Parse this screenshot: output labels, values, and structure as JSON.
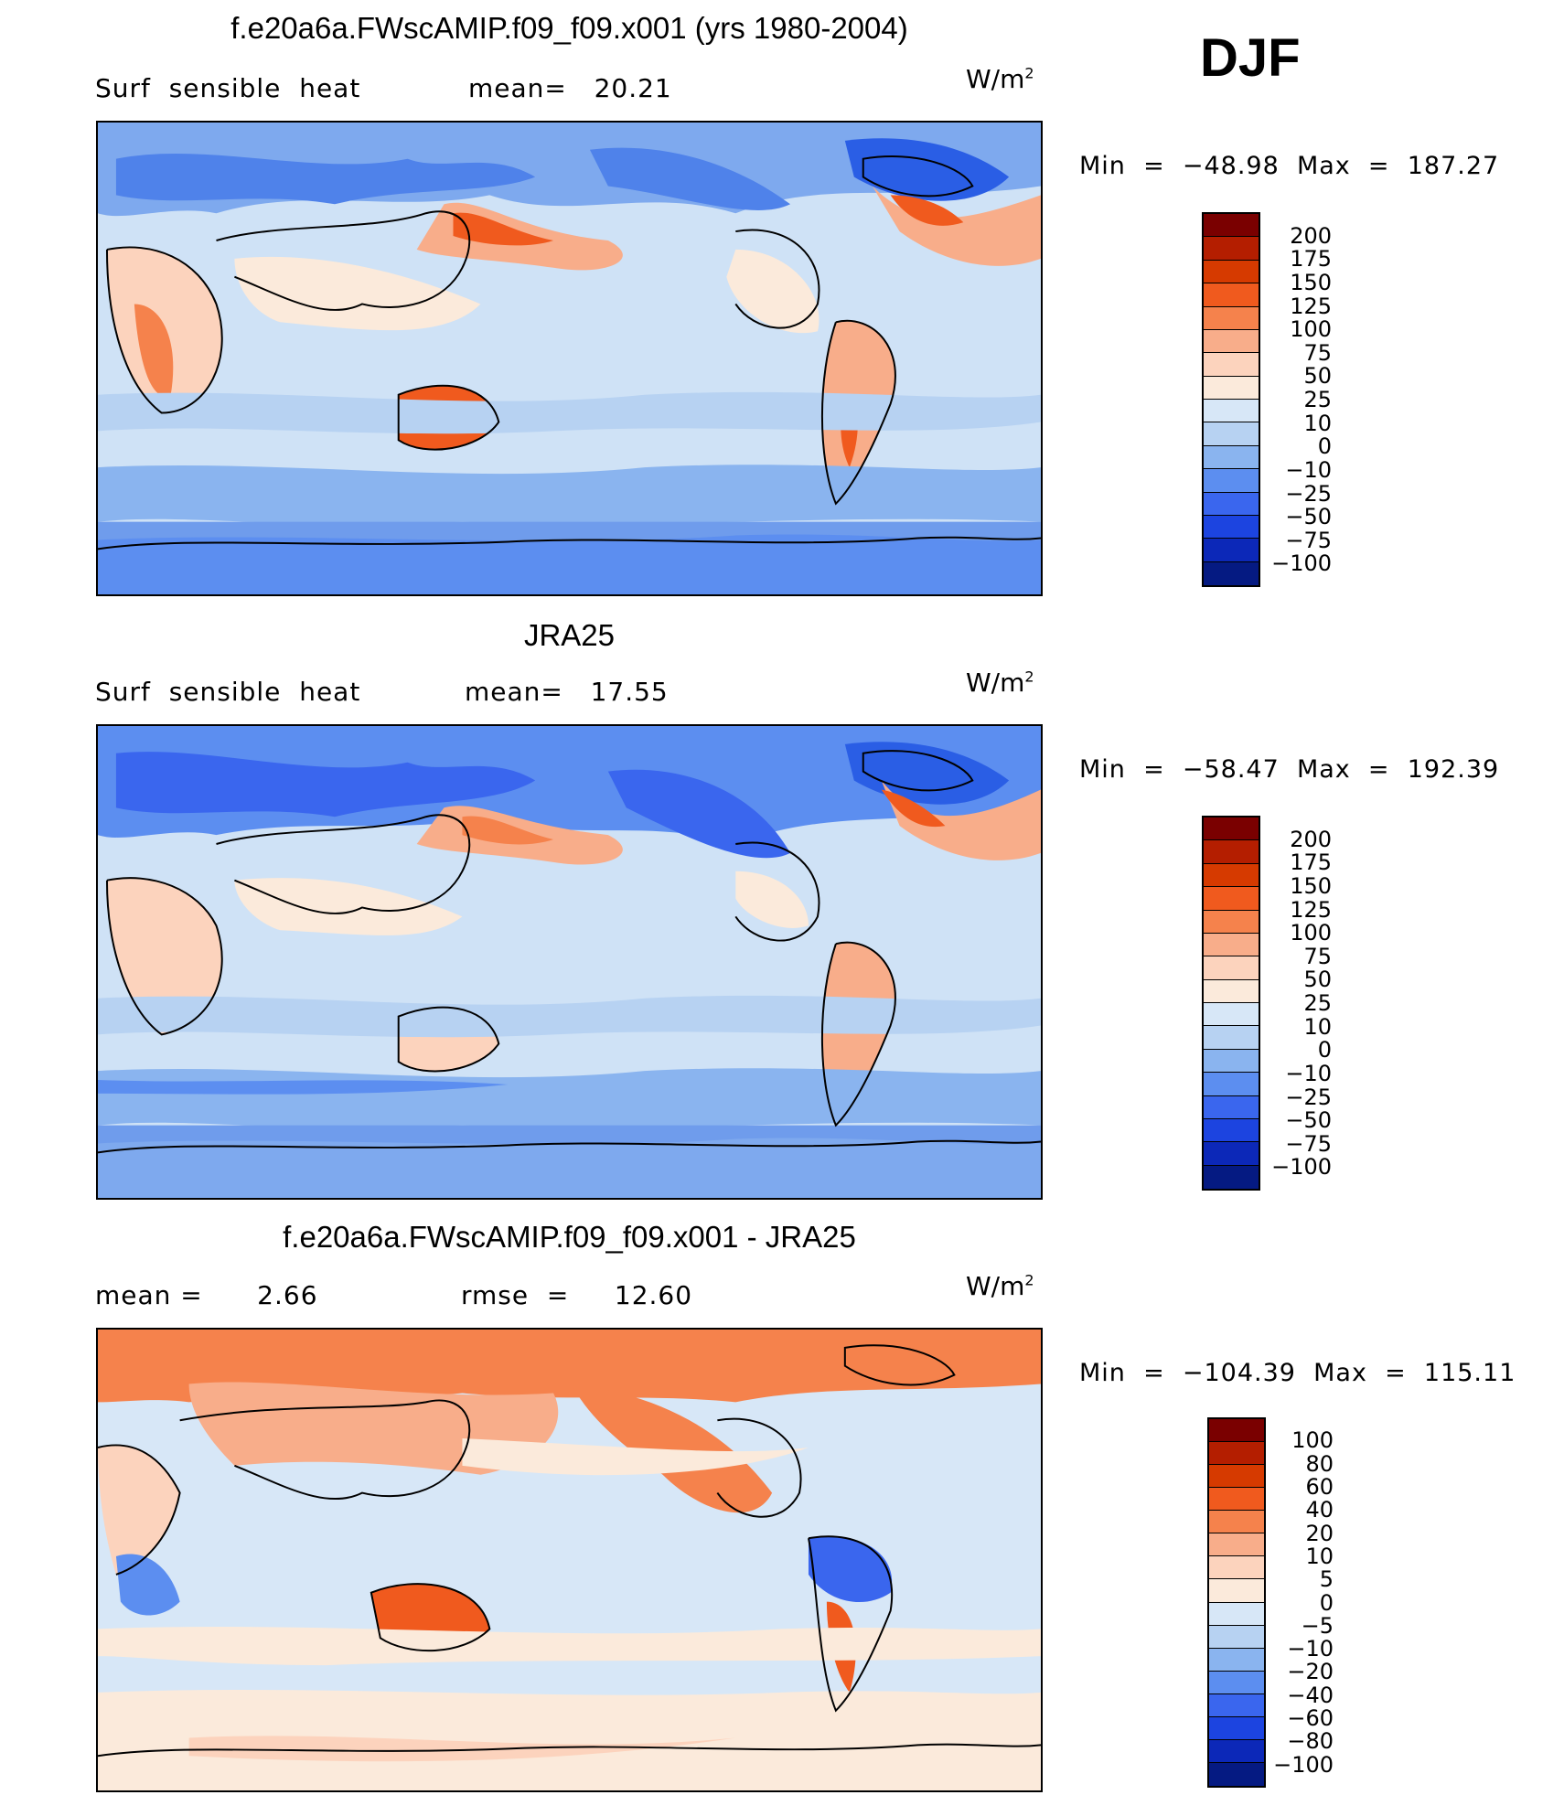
{
  "season": "DJF",
  "panels": [
    {
      "title": "f.e20a6a.FWscAMIP.f09_f09.x001 (yrs 1980-2004)",
      "left_text": "Surf  sensible  heat",
      "right_text": "mean=   20.21",
      "units": "W/m",
      "units_sup": "2",
      "minmax": "Min  =  −48.98  Max  =  187.27",
      "colorbar_labels": [
        "200",
        "175",
        "150",
        "125",
        "100",
        "75",
        "50",
        "25",
        "10",
        "0",
        "−10",
        "−25",
        "−50",
        "−75",
        "−100"
      ],
      "colorbar_colors": [
        "#7a0000",
        "#b41e00",
        "#d63a00",
        "#f05a1e",
        "#f5824c",
        "#f8ad8a",
        "#fcd3bd",
        "#fbeadb",
        "#d7e7f7",
        "#b7d2f2",
        "#8ab4ef",
        "#5c8ef0",
        "#3a66ee",
        "#1c44e0",
        "#0c28b8",
        "#051a82"
      ]
    },
    {
      "title": "JRA25",
      "left_text": "Surf  sensible  heat",
      "right_text": "mean=   17.55",
      "units": "W/m",
      "units_sup": "2",
      "minmax": "Min  =  −58.47  Max  =  192.39",
      "colorbar_labels": [
        "200",
        "175",
        "150",
        "125",
        "100",
        "75",
        "50",
        "25",
        "10",
        "0",
        "−10",
        "−25",
        "−50",
        "−75",
        "−100"
      ],
      "colorbar_colors": [
        "#7a0000",
        "#b41e00",
        "#d63a00",
        "#f05a1e",
        "#f5824c",
        "#f8ad8a",
        "#fcd3bd",
        "#fbeadb",
        "#d7e7f7",
        "#b7d2f2",
        "#8ab4ef",
        "#5c8ef0",
        "#3a66ee",
        "#1c44e0",
        "#0c28b8",
        "#051a82"
      ]
    },
    {
      "title": "f.e20a6a.FWscAMIP.f09_f09.x001 - JRA25",
      "left_text": "mean =      2.66",
      "right_text": "rmse  =     12.60",
      "units": "W/m",
      "units_sup": "2",
      "minmax": "Min  =  −104.39  Max  =  115.11",
      "colorbar_labels": [
        "100",
        "80",
        "60",
        "40",
        "20",
        "10",
        "5",
        "0",
        "−5",
        "−10",
        "−20",
        "−40",
        "−60",
        "−80",
        "−100"
      ],
      "colorbar_colors": [
        "#7a0000",
        "#b41e00",
        "#d63a00",
        "#f05a1e",
        "#f5824c",
        "#f8ad8a",
        "#fcd3bd",
        "#fbeadb",
        "#d7e7f7",
        "#b7d2f2",
        "#8ab4ef",
        "#5c8ef0",
        "#3a66ee",
        "#1c44e0",
        "#0c28b8",
        "#051a82"
      ]
    }
  ]
}
